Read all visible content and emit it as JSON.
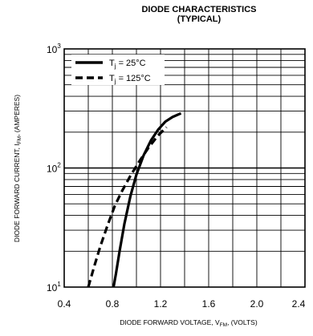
{
  "chart_data": {
    "type": "line",
    "title_line1": "DIODE CHARACTERISTICS",
    "title_line2": "(TYPICAL)",
    "xlabel": {
      "main": "DIODE FORWARD VOLTAGE, V",
      "sub": "FM",
      "tail": ", (VOLTS)"
    },
    "ylabel": {
      "main": "DIODE FORWARD CURRENT, I",
      "sub": "FM",
      "tail": ", (AMPERES)"
    },
    "xlim": [
      0.4,
      2.4
    ],
    "ylim": [
      10,
      1000
    ],
    "yscale": "log",
    "grid": true,
    "legend_position": "top-left",
    "x_ticks": [
      "0.4",
      "0.8",
      "1.2",
      "1.6",
      "2.0",
      "2.4"
    ],
    "y_ticks": [
      {
        "base": "10",
        "exp": "1",
        "value": 10
      },
      {
        "base": "10",
        "exp": "2",
        "value": 100
      },
      {
        "base": "10",
        "exp": "3",
        "value": 1000
      }
    ],
    "series": [
      {
        "legend": {
          "sym": "T",
          "sub": "j",
          "rest": " = 25°C"
        },
        "style": "solid",
        "x": [
          0.81,
          0.83,
          0.86,
          0.9,
          0.95,
          1.0,
          1.06,
          1.12,
          1.18,
          1.24,
          1.3,
          1.37
        ],
        "y": [
          10,
          13,
          20,
          34,
          58,
          88,
          128,
          170,
          210,
          245,
          268,
          288
        ]
      },
      {
        "legend": {
          "sym": "T",
          "sub": "j",
          "rest": " = 125°C"
        },
        "style": "dashed",
        "x": [
          0.6,
          0.65,
          0.7,
          0.76,
          0.82,
          0.88,
          0.95,
          1.02,
          1.1,
          1.18,
          1.25
        ],
        "y": [
          10,
          15,
          22,
          33,
          48,
          64,
          86,
          112,
          148,
          188,
          220
        ]
      }
    ]
  }
}
